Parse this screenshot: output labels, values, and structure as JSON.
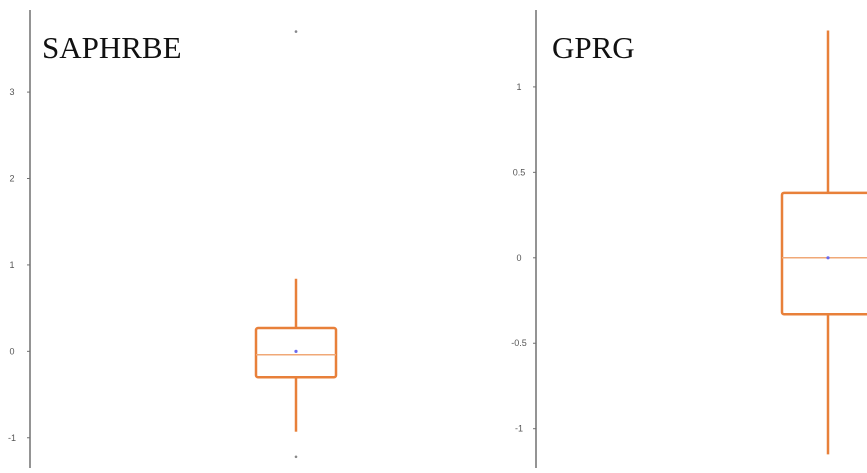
{
  "colors": {
    "box": "#e8803a",
    "median": "#f0a877",
    "mean": "#6a6af0",
    "axis": "#707070",
    "outlier": "#888888"
  },
  "chart_data": [
    {
      "type": "box",
      "title": "SAPHRBE",
      "ylim": [
        -1.35,
        3.95
      ],
      "yticks": [
        3,
        2,
        1,
        0,
        -1
      ],
      "ytick_labels": [
        "3",
        "2",
        "1",
        "0",
        "-1"
      ],
      "box": {
        "whisker_low": -0.93,
        "q1": -0.3,
        "median": -0.04,
        "mean": 0.0,
        "q3": 0.27,
        "whisker_high": 0.84
      },
      "outliers": [
        3.7,
        -1.22
      ]
    },
    {
      "type": "box",
      "title": "GPRG",
      "ylim": [
        -1.23,
        1.45
      ],
      "yticks": [
        1,
        0.5,
        0,
        -0.5,
        -1
      ],
      "ytick_labels": [
        "1",
        "0.5",
        "0",
        "-0.5",
        "-1"
      ],
      "box": {
        "whisker_low": -1.15,
        "q1": -0.33,
        "median": 0.0,
        "mean": 0.0,
        "q3": 0.38,
        "whisker_high": 1.33
      },
      "outliers": []
    }
  ]
}
